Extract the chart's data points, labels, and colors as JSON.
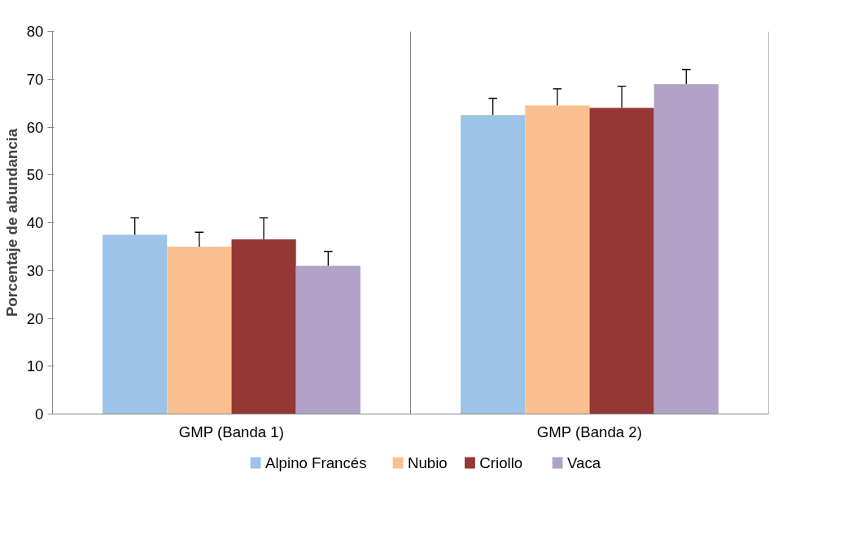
{
  "chart_data": {
    "type": "bar",
    "ylabel": "Porcentaje de abundancia",
    "categories": [
      "GMP (Banda 1)",
      "GMP (Banda 2)"
    ],
    "series": [
      {
        "name": "Alpino Francés",
        "color": "#9dc3e6",
        "values": [
          37.5,
          62.5
        ],
        "errors": [
          [
            37.5,
            41
          ],
          [
            62.5,
            66
          ]
        ]
      },
      {
        "name": "Nubio",
        "color": "#fbc08f",
        "values": [
          35,
          64.5
        ],
        "errors": [
          [
            35,
            38
          ],
          [
            64.5,
            68
          ]
        ]
      },
      {
        "name": "Criollo",
        "color": "#953735",
        "values": [
          36.5,
          64
        ],
        "errors": [
          [
            36.5,
            41
          ],
          [
            64,
            68.5
          ]
        ]
      },
      {
        "name": "Vaca",
        "color": "#b3a2c7",
        "values": [
          31,
          69
        ],
        "errors": [
          [
            31,
            34
          ],
          [
            69,
            72
          ]
        ]
      }
    ],
    "ylim": [
      0,
      80
    ],
    "yticks": [
      0,
      10,
      20,
      30,
      40,
      50,
      60,
      70,
      80
    ],
    "grid": "x",
    "legend": "bottom"
  }
}
